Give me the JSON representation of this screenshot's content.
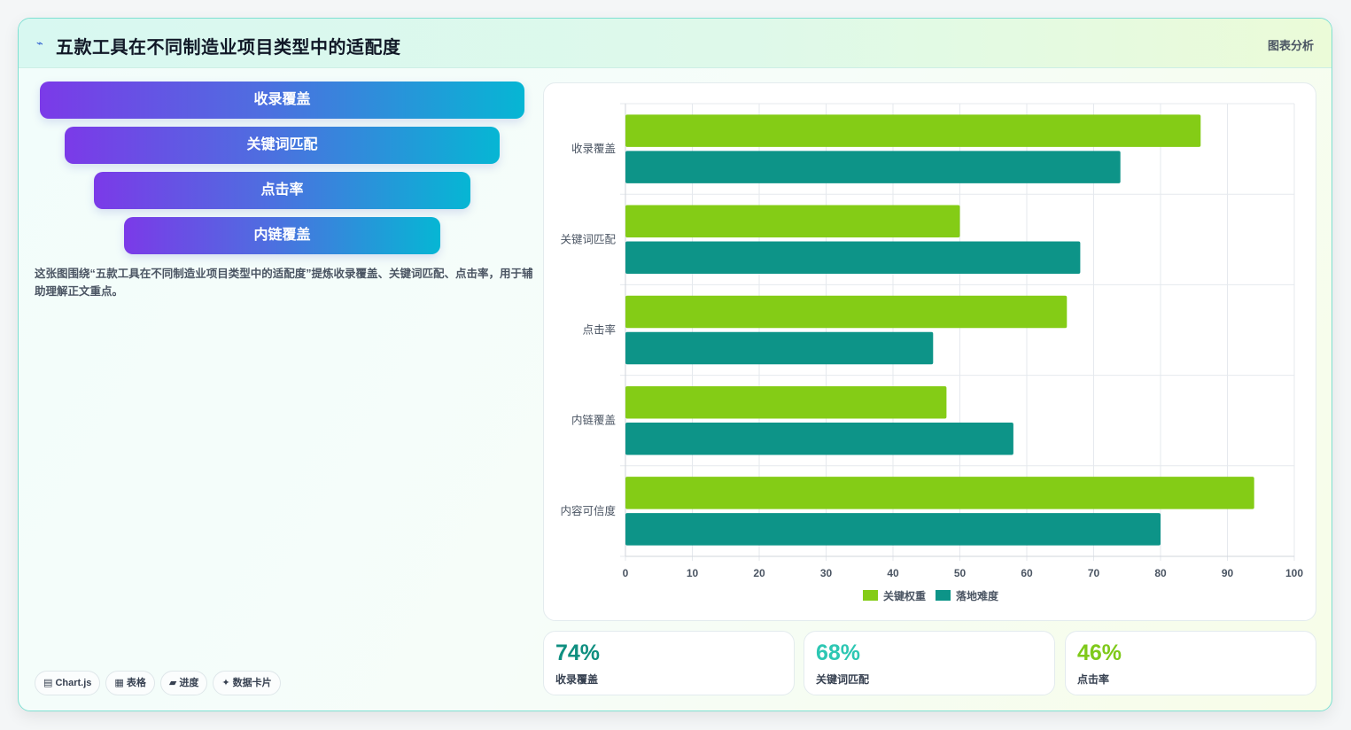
{
  "header": {
    "logo_icon": "sparkle-icon",
    "title": "五款工具在不同制造业项目类型中的适配度",
    "tag": "图表分析"
  },
  "funnel": [
    "收录覆盖",
    "关键词匹配",
    "点击率",
    "内链覆盖"
  ],
  "description": "这张图围绕“五款工具在不同制造业项目类型中的适配度”提炼收录覆盖、关键词匹配、点击率，用于辅助理解正文重点。",
  "badges": [
    "▤ Chart.js",
    "▦ 表格",
    "▰ 进度",
    "✦ 数据卡片"
  ],
  "stats": [
    {
      "value": "74%",
      "label": "收录覆盖",
      "color": "#0f8f80"
    },
    {
      "value": "68%",
      "label": "关键词匹配",
      "color": "#2dc7b3"
    },
    {
      "value": "46%",
      "label": "点击率",
      "color": "#7fc91a"
    }
  ],
  "chart_data": {
    "type": "bar",
    "orientation": "horizontal",
    "categories": [
      "收录覆盖",
      "关键词匹配",
      "点击率",
      "内链覆盖",
      "内容可信度"
    ],
    "series": [
      {
        "name": "关键权重",
        "color": "#84cc16",
        "values": [
          86,
          50,
          66,
          48,
          94
        ]
      },
      {
        "name": "落地难度",
        "color": "#0d9488",
        "values": [
          74,
          68,
          46,
          58,
          80
        ]
      }
    ],
    "xlim": [
      0,
      100
    ],
    "xticks": [
      0,
      10,
      20,
      30,
      40,
      50,
      60,
      70,
      80,
      90,
      100
    ],
    "grid": true,
    "legend": "bottom"
  }
}
